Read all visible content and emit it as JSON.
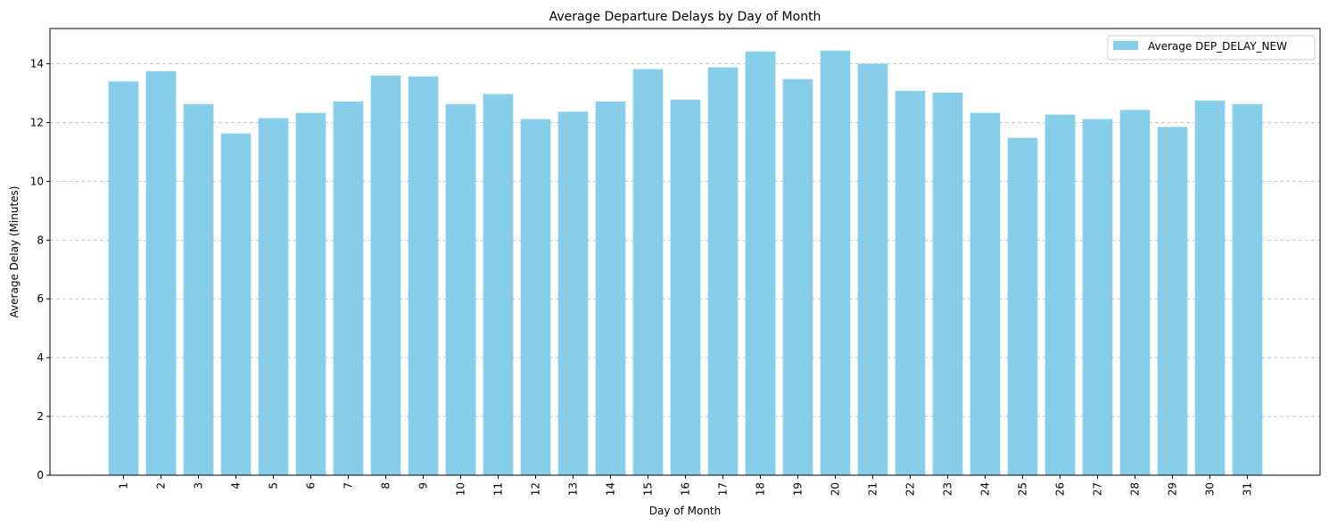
{
  "chart_data": {
    "type": "bar",
    "title": "Average Departure Delays by Day of Month",
    "xlabel": "Day of Month",
    "ylabel": "Average Delay (Minutes)",
    "categories": [
      "1",
      "2",
      "3",
      "4",
      "5",
      "6",
      "7",
      "8",
      "9",
      "10",
      "11",
      "12",
      "13",
      "14",
      "15",
      "16",
      "17",
      "18",
      "19",
      "20",
      "21",
      "22",
      "23",
      "24",
      "25",
      "26",
      "27",
      "28",
      "29",
      "30",
      "31"
    ],
    "series": [
      {
        "name": "Average DEP_DELAY_NEW",
        "color": "#87ceeb",
        "values": [
          13.4,
          13.75,
          12.63,
          11.63,
          12.15,
          12.33,
          12.72,
          13.6,
          13.57,
          12.63,
          12.97,
          12.12,
          12.37,
          12.72,
          13.82,
          12.78,
          13.88,
          14.42,
          13.48,
          14.45,
          14.0,
          13.08,
          13.02,
          12.33,
          11.48,
          12.27,
          12.12,
          12.43,
          11.85,
          12.75,
          12.63
        ]
      }
    ],
    "ylim": [
      0,
      15.2
    ],
    "yticks": [
      0,
      2,
      4,
      6,
      8,
      10,
      12,
      14
    ],
    "grid": "y",
    "legend_position": "top-right"
  }
}
